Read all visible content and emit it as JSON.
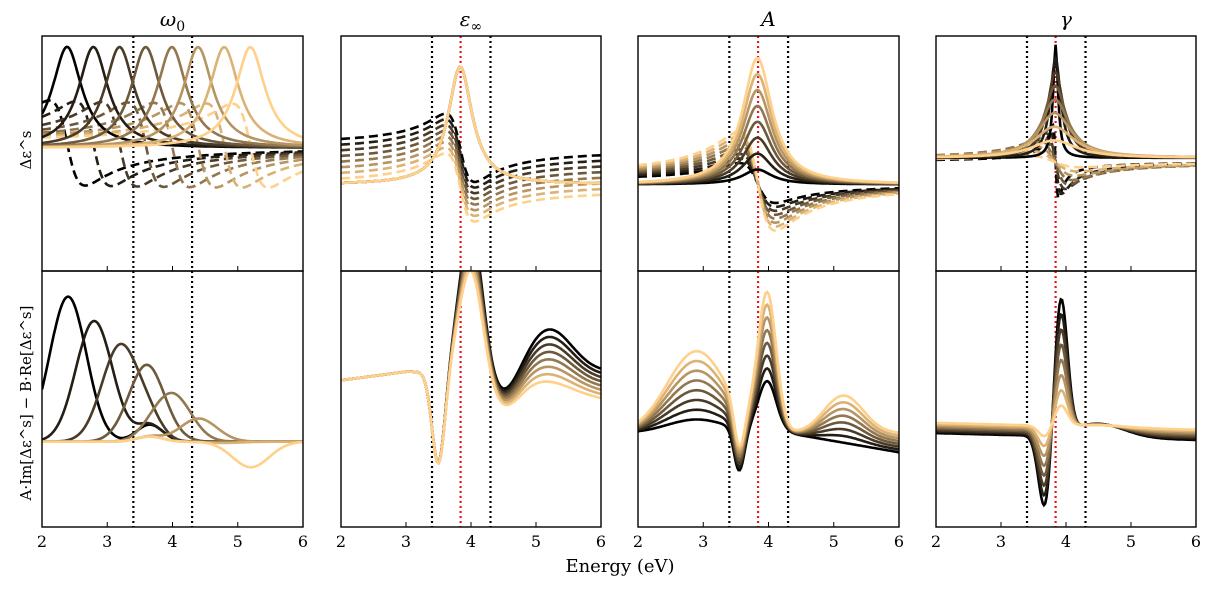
{
  "figure": {
    "xlabel": "Energy (eV)",
    "row_ylabels": [
      "Δε^s",
      "A·Im[Δε^s] − B·Re[Δε^s]"
    ],
    "colors": {
      "dark": "#000000",
      "light": "#ffd08a",
      "marker_dotted": "#000000",
      "marker_red": "#e8161b"
    }
  },
  "chart_data": [
    {
      "type": "line",
      "row": 0,
      "col": 0,
      "parameter": "ω0",
      "title": "ω0",
      "title_base": "ω",
      "title_sub": "0",
      "xlim": [
        2,
        6
      ],
      "ylim": [
        -1.1,
        1.0
      ],
      "xticks": [
        2,
        3,
        4,
        5,
        6
      ],
      "xticks_labeled": false,
      "yticks": [],
      "markers": [
        {
          "x": 3.4,
          "style": "dotted"
        },
        {
          "x": 4.3,
          "style": "dotted"
        }
      ],
      "series_note": "8 parameter steps; solid = Im part, dashed = Re part; color dark→light"
    },
    {
      "type": "line",
      "row": 0,
      "col": 1,
      "parameter": "ε∞",
      "title": "ε∞",
      "title_base": "ε",
      "title_sub": "∞",
      "xlim": [
        2,
        6
      ],
      "ylim": [
        -0.7,
        1.2
      ],
      "xticks": [
        2,
        3,
        4,
        5,
        6
      ],
      "xticks_labeled": false,
      "yticks": [],
      "markers": [
        {
          "x": 3.4,
          "style": "dotted"
        },
        {
          "x": 4.3,
          "style": "dotted"
        },
        {
          "x": 3.84,
          "style": "red-dotted"
        }
      ]
    },
    {
      "type": "line",
      "row": 0,
      "col": 2,
      "parameter": "A",
      "title": "A",
      "title_base": "A",
      "title_sub": "",
      "xlim": [
        2,
        6
      ],
      "ylim": [
        -0.7,
        1.2
      ],
      "xticks": [
        2,
        3,
        4,
        5,
        6
      ],
      "xticks_labeled": false,
      "yticks": [],
      "markers": [
        {
          "x": 3.4,
          "style": "dotted"
        },
        {
          "x": 4.3,
          "style": "dotted"
        },
        {
          "x": 3.84,
          "style": "red-dotted"
        }
      ]
    },
    {
      "type": "line",
      "row": 0,
      "col": 3,
      "parameter": "γ",
      "title": "γ",
      "title_base": "γ",
      "title_sub": "",
      "xlim": [
        2,
        6
      ],
      "ylim": [
        -1.25,
        1.45
      ],
      "xticks": [
        2,
        3,
        4,
        5,
        6
      ],
      "xticks_labeled": false,
      "yticks": [],
      "markers": [
        {
          "x": 3.4,
          "style": "dotted"
        },
        {
          "x": 4.3,
          "style": "dotted"
        },
        {
          "x": 3.84,
          "style": "red-dotted"
        }
      ]
    },
    {
      "type": "line",
      "row": 1,
      "col": 0,
      "xlim": [
        2,
        6
      ],
      "ylim": [
        -0.5,
        1.0
      ],
      "xticks": [
        2,
        3,
        4,
        5,
        6
      ],
      "xtick_labels": [
        "2",
        "3",
        "4",
        "5",
        "6"
      ],
      "yticks": [],
      "markers": [
        {
          "x": 3.4,
          "style": "dotted"
        },
        {
          "x": 4.3,
          "style": "dotted"
        }
      ]
    },
    {
      "type": "line",
      "row": 1,
      "col": 1,
      "xlim": [
        2,
        6
      ],
      "ylim": [
        -0.5,
        1.0
      ],
      "xticks": [
        2,
        3,
        4,
        5,
        6
      ],
      "xtick_labels": [
        "2",
        "3",
        "4",
        "5",
        "6"
      ],
      "yticks": [],
      "markers": [
        {
          "x": 3.4,
          "style": "dotted"
        },
        {
          "x": 4.3,
          "style": "dotted"
        },
        {
          "x": 3.84,
          "style": "red-dotted"
        }
      ]
    },
    {
      "type": "line",
      "row": 1,
      "col": 2,
      "xlim": [
        2,
        6
      ],
      "ylim": [
        -0.5,
        1.0
      ],
      "xticks": [
        2,
        3,
        4,
        5,
        6
      ],
      "xtick_labels": [
        "2",
        "3",
        "4",
        "5",
        "6"
      ],
      "yticks": [],
      "markers": [
        {
          "x": 3.4,
          "style": "dotted"
        },
        {
          "x": 4.3,
          "style": "dotted"
        },
        {
          "x": 3.84,
          "style": "red-dotted"
        }
      ]
    },
    {
      "type": "line",
      "row": 1,
      "col": 3,
      "xlim": [
        2,
        6
      ],
      "ylim": [
        -0.5,
        1.0
      ],
      "xticks": [
        2,
        3,
        4,
        5,
        6
      ],
      "xtick_labels": [
        "2",
        "3",
        "4",
        "5",
        "6"
      ],
      "yticks": [],
      "markers": [
        {
          "x": 3.4,
          "style": "dotted"
        },
        {
          "x": 4.3,
          "style": "dotted"
        },
        {
          "x": 3.84,
          "style": "red-dotted"
        }
      ]
    }
  ]
}
